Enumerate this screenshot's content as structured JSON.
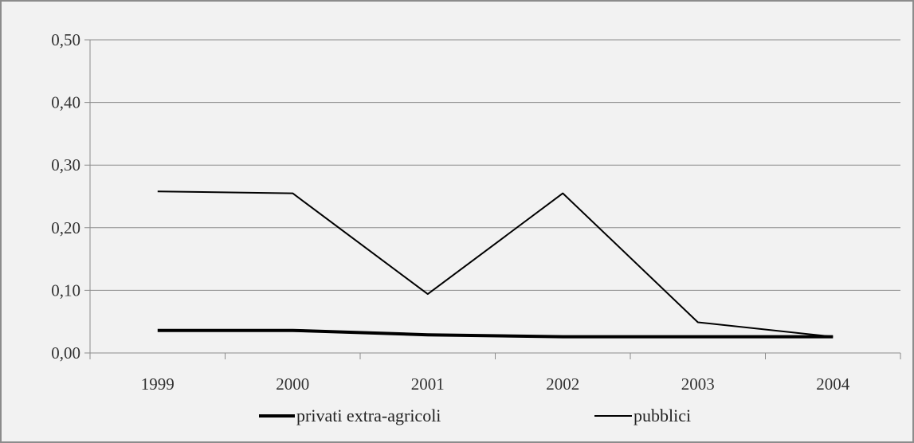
{
  "chart_data": {
    "type": "line",
    "title": "",
    "xlabel": "",
    "ylabel": "",
    "categories": [
      "1999",
      "2000",
      "2001",
      "2002",
      "2003",
      "2004"
    ],
    "y_ticks": [
      "0,00",
      "0,10",
      "0,20",
      "0,30",
      "0,40",
      "0,50"
    ],
    "ylim": [
      0,
      0.5
    ],
    "grid": "horizontal",
    "legend_position": "bottom",
    "series": [
      {
        "name": "privati extra-agricoli",
        "values": [
          0.036,
          0.036,
          0.029,
          0.026,
          0.026,
          0.026
        ],
        "color": "#000000",
        "line_style": "thick"
      },
      {
        "name": "pubblici",
        "values": [
          0.258,
          0.255,
          0.094,
          0.255,
          0.049,
          0.026
        ],
        "color": "#000000",
        "line_style": "thin"
      }
    ],
    "background_color": "#f2f2f2",
    "grid_color": "#8c8c8c",
    "border_color": "#8c8c8c"
  }
}
